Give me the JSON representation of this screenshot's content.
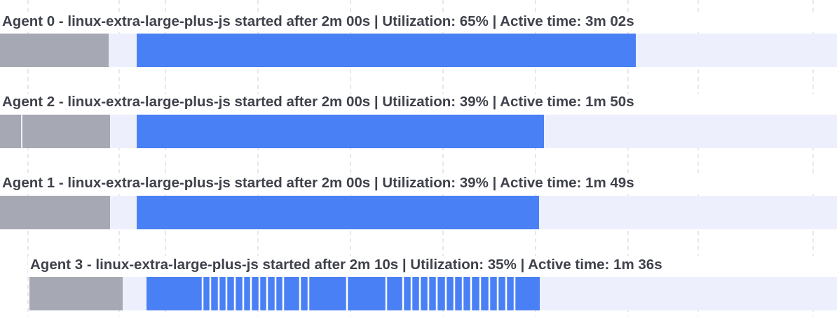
{
  "agents": [
    {
      "label": "Agent 0 - linux-extra-large-plus-js started after 2m 00s | Utilization: 65% | Active time: 3m 02s"
    },
    {
      "label": "Agent 2 - linux-extra-large-plus-js started after 2m 00s | Utilization: 39% | Active time: 1m 50s"
    },
    {
      "label": "Agent 1 - linux-extra-large-plus-js started after 2m 00s | Utilization: 39% | Active time: 1m 49s"
    },
    {
      "label": "Agent 3 - linux-extra-large-plus-js started after 2m 10s | Utilization: 35% | Active time: 1m 36s"
    }
  ]
}
